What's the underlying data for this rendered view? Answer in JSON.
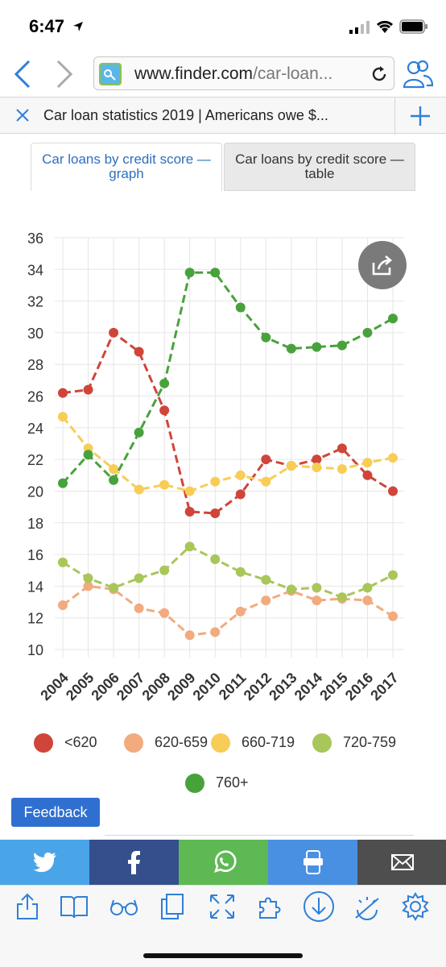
{
  "status": {
    "time": "6:47"
  },
  "browser": {
    "url_host": "www.finder.com",
    "url_path": "/car-loan...",
    "tab_title": "Car loan statistics 2019 | Americans owe $..."
  },
  "chart_tabs": {
    "graph": "Car loans by credit score — graph",
    "table": "Car loans by credit score — table"
  },
  "chart_data": {
    "type": "line",
    "x": [
      "2004",
      "2005",
      "2006",
      "2007",
      "2008",
      "2009",
      "2010",
      "2011",
      "2012",
      "2013",
      "2014",
      "2015",
      "2016",
      "2017"
    ],
    "ylim": [
      10,
      36
    ],
    "yticks": [
      10,
      12,
      14,
      16,
      18,
      20,
      22,
      24,
      26,
      28,
      30,
      32,
      34,
      36
    ],
    "grid": true,
    "legend_position": "bottom",
    "series": [
      {
        "name": "<620",
        "color": "#d0453a",
        "values": [
          26.2,
          26.4,
          30.0,
          28.8,
          25.1,
          18.7,
          18.6,
          19.8,
          22.0,
          21.6,
          22.0,
          22.7,
          21.0,
          20.0
        ]
      },
      {
        "name": "620-659",
        "color": "#f1ab7f",
        "values": [
          12.8,
          14.0,
          13.8,
          12.6,
          12.3,
          10.9,
          11.1,
          12.4,
          13.1,
          13.7,
          13.1,
          13.2,
          13.1,
          12.1
        ]
      },
      {
        "name": "660-719",
        "color": "#f7cd57",
        "values": [
          24.7,
          22.7,
          21.4,
          20.1,
          20.4,
          20.0,
          20.6,
          21.0,
          20.6,
          21.6,
          21.5,
          21.4,
          21.8,
          22.1
        ]
      },
      {
        "name": "720-759",
        "color": "#a9c65a",
        "values": [
          15.5,
          14.5,
          13.9,
          14.5,
          15.0,
          16.5,
          15.7,
          14.9,
          14.4,
          13.8,
          13.9,
          13.3,
          13.9,
          14.7
        ]
      },
      {
        "name": "760+",
        "color": "#48a23c",
        "values": [
          20.5,
          22.3,
          20.7,
          23.7,
          26.8,
          33.8,
          33.8,
          31.6,
          29.7,
          29.0,
          29.1,
          29.2,
          30.0,
          30.9
        ]
      }
    ]
  },
  "feedback": "Feedback",
  "colors": {
    "twitter": "#4aa4e8",
    "facebook": "#344f8b",
    "whatsapp": "#5eb854",
    "sms": "#4a90e2",
    "email": "#4e4e4e",
    "ios_blue": "#2f7fd8"
  }
}
